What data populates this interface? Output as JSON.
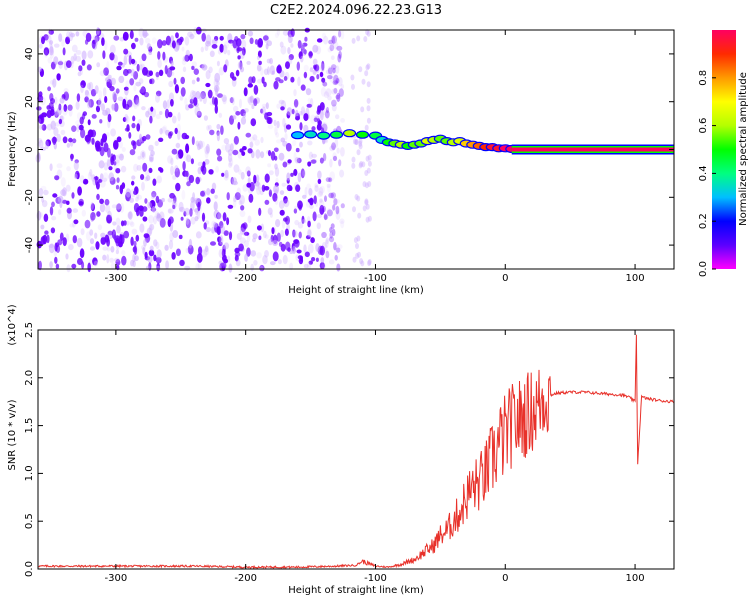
{
  "title": "C2E2.2024.096.22.23.G13",
  "colors": {
    "snr_line": "#e8312a",
    "spectro_dots": "#6a00ff",
    "background": "#ffffff",
    "axis": "#000000"
  },
  "chart_data": [
    {
      "type": "heatmap",
      "title": "C2E2.2024.096.22.23.G13",
      "xlabel": "Height of straight line (km)",
      "ylabel": "Frequency (Hz)",
      "xlim": [
        -360,
        130
      ],
      "ylim": [
        -50,
        50
      ],
      "x_ticks": [
        -300,
        -200,
        -100,
        0,
        100
      ],
      "y_ticks": [
        -40,
        -20,
        0,
        20,
        40
      ],
      "colorbar": {
        "label": "Normalized spectral amplitude",
        "range": [
          0,
          1
        ],
        "ticks": [
          0.0,
          0.2,
          0.4,
          0.6,
          0.8
        ],
        "tick_labels": [
          "0.0",
          "0.2",
          "0.4",
          "0.6",
          "0.8"
        ],
        "colormap": [
          "#ff00ff",
          "#5b00ff",
          "#0000ff",
          "#00bfff",
          "#00ff80",
          "#00ff00",
          "#b4ff00",
          "#ffff00",
          "#ff9a00",
          "#ff2a00",
          "#ff0060"
        ]
      },
      "trace_points": [
        [
          -160,
          6.0,
          0.3
        ],
        [
          -150,
          6.3,
          0.35
        ],
        [
          -140,
          5.8,
          0.4
        ],
        [
          -130,
          6.2,
          0.45
        ],
        [
          -120,
          6.8,
          0.6
        ],
        [
          -110,
          6.2,
          0.5
        ],
        [
          -100,
          5.8,
          0.45
        ],
        [
          -95,
          4.0,
          0.35
        ],
        [
          -90,
          3.0,
          0.5
        ],
        [
          -85,
          2.5,
          0.55
        ],
        [
          -80,
          2.0,
          0.6
        ],
        [
          -75,
          1.5,
          0.5
        ],
        [
          -70,
          2.0,
          0.55
        ],
        [
          -65,
          2.5,
          0.55
        ],
        [
          -60,
          3.5,
          0.65
        ],
        [
          -55,
          4.0,
          0.6
        ],
        [
          -50,
          4.5,
          0.55
        ],
        [
          -45,
          3.5,
          0.55
        ],
        [
          -40,
          3.0,
          0.6
        ],
        [
          -35,
          3.5,
          0.65
        ],
        [
          -30,
          2.5,
          0.75
        ],
        [
          -25,
          2.0,
          0.8
        ],
        [
          -20,
          1.5,
          0.85
        ],
        [
          -15,
          1.0,
          0.9
        ],
        [
          -10,
          1.0,
          0.95
        ],
        [
          -5,
          0.5,
          0.95
        ],
        [
          0,
          0.5,
          1.0
        ],
        [
          5,
          0.2,
          1.0
        ]
      ],
      "steady_band": {
        "x_start": 5,
        "x_end": 130,
        "frequency": 0.0,
        "amplitude": 1.0
      }
    },
    {
      "type": "line",
      "xlabel": "Height of straight line (km)",
      "ylabel": "SNR (10 * v/v)",
      "scale_label": "(x10^4)",
      "xlim": [
        -360,
        130
      ],
      "ylim": [
        0,
        2.5
      ],
      "x_ticks": [
        -300,
        -200,
        -100,
        0,
        100
      ],
      "y_ticks": [
        0.0,
        0.5,
        1.0,
        1.5,
        2.0,
        2.5
      ],
      "y_tick_labels": [
        "0.0",
        "0.5",
        "1.0",
        "1.5",
        "2.0",
        "2.5"
      ],
      "series": [
        {
          "x": [
            -360,
            -320,
            -280,
            -240,
            -200,
            -160,
            -130,
            -115,
            -110,
            -100,
            -90,
            -80,
            -70,
            -60,
            -55,
            -50,
            -45,
            -40,
            -35,
            -30,
            -25,
            -20,
            -15,
            -10,
            -5,
            0,
            5,
            10,
            15,
            20,
            25,
            30,
            40,
            50,
            60,
            70,
            80,
            90,
            95,
            100,
            101,
            102,
            105,
            110,
            120,
            130
          ],
          "y": [
            0.03,
            0.03,
            0.03,
            0.03,
            0.02,
            0.02,
            0.03,
            0.04,
            0.08,
            0.03,
            0.02,
            0.05,
            0.1,
            0.2,
            0.25,
            0.35,
            0.4,
            0.5,
            0.6,
            0.75,
            0.85,
            0.9,
            1.0,
            1.15,
            1.3,
            1.4,
            1.5,
            1.55,
            1.6,
            1.65,
            1.7,
            1.8,
            1.84,
            1.85,
            1.85,
            1.84,
            1.83,
            1.82,
            1.8,
            1.75,
            2.45,
            1.1,
            1.8,
            1.78,
            1.76,
            1.75
          ]
        }
      ]
    }
  ]
}
